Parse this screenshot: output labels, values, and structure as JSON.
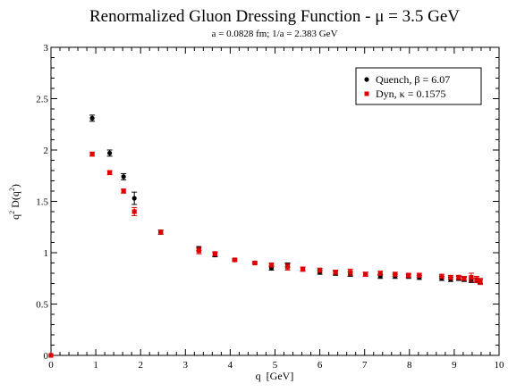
{
  "chart_data": {
    "type": "scatter",
    "title": "Renormalized Gluon Dressing Function - μ = 3.5 GeV",
    "subtitle": "a = 0.0828 fm; 1/a = 2.383 GeV",
    "xlabel": "q  [GeV]",
    "ylabel": "q² D(q²)",
    "xlim": [
      0,
      10
    ],
    "ylim": [
      0,
      3
    ],
    "x_ticks": [
      "0",
      "1",
      "2",
      "3",
      "4",
      "5",
      "6",
      "7",
      "8",
      "9",
      "10"
    ],
    "y_ticks": [
      "0",
      "0.5",
      "1",
      "1.5",
      "2",
      "2.5",
      "3"
    ],
    "grid": false,
    "legend_position": "top-right",
    "series": [
      {
        "name": "Quench, β = 6.07",
        "color": "#000000",
        "marker": "circle",
        "points": [
          {
            "x": 0.92,
            "y": 2.31,
            "err": 0.03
          },
          {
            "x": 1.31,
            "y": 1.97,
            "err": 0.03
          },
          {
            "x": 1.62,
            "y": 1.74,
            "err": 0.03
          },
          {
            "x": 1.86,
            "y": 1.53,
            "err": 0.06
          },
          {
            "x": 2.45,
            "y": 1.2,
            "err": 0.02
          },
          {
            "x": 3.3,
            "y": 1.04,
            "err": 0.02
          },
          {
            "x": 3.66,
            "y": 0.98,
            "err": 0.02
          },
          {
            "x": 4.1,
            "y": 0.93,
            "err": 0.01
          },
          {
            "x": 4.55,
            "y": 0.9,
            "err": 0.01
          },
          {
            "x": 4.92,
            "y": 0.85,
            "err": 0.02
          },
          {
            "x": 5.28,
            "y": 0.88,
            "err": 0.02
          },
          {
            "x": 5.62,
            "y": 0.84,
            "err": 0.02
          },
          {
            "x": 6.0,
            "y": 0.81,
            "err": 0.02
          },
          {
            "x": 6.35,
            "y": 0.8,
            "err": 0.02
          },
          {
            "x": 6.68,
            "y": 0.79,
            "err": 0.02
          },
          {
            "x": 7.02,
            "y": 0.79,
            "err": 0.02
          },
          {
            "x": 7.35,
            "y": 0.77,
            "err": 0.02
          },
          {
            "x": 7.68,
            "y": 0.77,
            "err": 0.02
          },
          {
            "x": 7.98,
            "y": 0.77,
            "err": 0.02
          },
          {
            "x": 8.22,
            "y": 0.76,
            "err": 0.02
          },
          {
            "x": 8.72,
            "y": 0.75,
            "err": 0.02
          },
          {
            "x": 8.92,
            "y": 0.74,
            "err": 0.02
          },
          {
            "x": 9.1,
            "y": 0.75,
            "err": 0.02
          },
          {
            "x": 9.22,
            "y": 0.74,
            "err": 0.02
          },
          {
            "x": 9.38,
            "y": 0.73,
            "err": 0.02
          },
          {
            "x": 9.5,
            "y": 0.73,
            "err": 0.02
          },
          {
            "x": 9.58,
            "y": 0.72,
            "err": 0.02
          }
        ]
      },
      {
        "name": "Dyn, κ = 0.1575",
        "color": "#e00000",
        "marker": "square",
        "points": [
          {
            "x": 0.0,
            "y": 0.0,
            "err": 0.0
          },
          {
            "x": 0.92,
            "y": 1.96,
            "err": 0.02
          },
          {
            "x": 1.31,
            "y": 1.78,
            "err": 0.02
          },
          {
            "x": 1.62,
            "y": 1.6,
            "err": 0.02
          },
          {
            "x": 1.86,
            "y": 1.4,
            "err": 0.04
          },
          {
            "x": 2.45,
            "y": 1.2,
            "err": 0.02
          },
          {
            "x": 3.3,
            "y": 1.02,
            "err": 0.03
          },
          {
            "x": 3.66,
            "y": 0.99,
            "err": 0.02
          },
          {
            "x": 4.1,
            "y": 0.93,
            "err": 0.01
          },
          {
            "x": 4.55,
            "y": 0.9,
            "err": 0.01
          },
          {
            "x": 4.92,
            "y": 0.88,
            "err": 0.02
          },
          {
            "x": 5.28,
            "y": 0.86,
            "err": 0.03
          },
          {
            "x": 5.62,
            "y": 0.84,
            "err": 0.02
          },
          {
            "x": 6.0,
            "y": 0.83,
            "err": 0.02
          },
          {
            "x": 6.35,
            "y": 0.81,
            "err": 0.02
          },
          {
            "x": 6.68,
            "y": 0.81,
            "err": 0.03
          },
          {
            "x": 7.02,
            "y": 0.79,
            "err": 0.02
          },
          {
            "x": 7.35,
            "y": 0.8,
            "err": 0.02
          },
          {
            "x": 7.68,
            "y": 0.79,
            "err": 0.02
          },
          {
            "x": 7.98,
            "y": 0.78,
            "err": 0.02
          },
          {
            "x": 8.22,
            "y": 0.78,
            "err": 0.02
          },
          {
            "x": 8.72,
            "y": 0.77,
            "err": 0.02
          },
          {
            "x": 8.92,
            "y": 0.76,
            "err": 0.02
          },
          {
            "x": 9.1,
            "y": 0.76,
            "err": 0.02
          },
          {
            "x": 9.22,
            "y": 0.75,
            "err": 0.02
          },
          {
            "x": 9.38,
            "y": 0.76,
            "err": 0.04
          },
          {
            "x": 9.5,
            "y": 0.74,
            "err": 0.03
          },
          {
            "x": 9.58,
            "y": 0.72,
            "err": 0.03
          }
        ]
      }
    ]
  }
}
